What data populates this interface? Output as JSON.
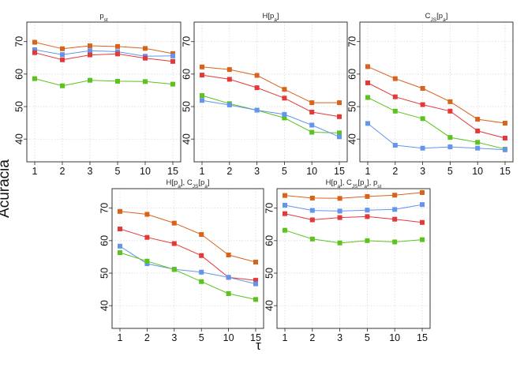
{
  "figure": {
    "ylabel": "Acurácia",
    "xlabel": "τ"
  },
  "chart_data": [
    {
      "type": "line",
      "title": "p_st",
      "x": [
        "1",
        "2",
        "3",
        "5",
        "10",
        "15"
      ],
      "ylim": [
        33,
        76
      ],
      "yticks": [
        40,
        50,
        60,
        70
      ],
      "series": [
        {
          "name": "orange",
          "color": "#d8641c",
          "values": [
            69.8,
            67.8,
            68.7,
            68.5,
            67.9,
            66.3
          ]
        },
        {
          "name": "blue",
          "color": "#6495ed",
          "values": [
            67.5,
            66.0,
            67.2,
            66.9,
            65.5,
            65.6
          ]
        },
        {
          "name": "red",
          "color": "#e23a3a",
          "values": [
            66.6,
            64.4,
            65.9,
            66.2,
            64.9,
            63.9
          ]
        },
        {
          "name": "green",
          "color": "#5cc21d",
          "values": [
            58.6,
            56.4,
            58.1,
            57.8,
            57.7,
            56.9
          ]
        }
      ]
    },
    {
      "type": "line",
      "title": "H[p_a]",
      "x": [
        "1",
        "2",
        "3",
        "5",
        "10",
        "15"
      ],
      "ylim": [
        33,
        76
      ],
      "yticks": [
        40,
        50,
        60,
        70
      ],
      "series": [
        {
          "name": "orange",
          "color": "#d8641c",
          "values": [
            62.2,
            61.4,
            59.6,
            55.3,
            51.2,
            51.2
          ]
        },
        {
          "name": "red",
          "color": "#e23a3a",
          "values": [
            59.7,
            58.4,
            55.8,
            52.6,
            48.3,
            46.9
          ]
        },
        {
          "name": "green",
          "color": "#5cc21d",
          "values": [
            53.4,
            50.9,
            48.9,
            46.5,
            42.1,
            41.9
          ]
        },
        {
          "name": "blue",
          "color": "#6495ed",
          "values": [
            51.9,
            50.5,
            48.9,
            47.6,
            44.3,
            40.7
          ]
        }
      ]
    },
    {
      "type": "line",
      "title": "C_JS[p_a]",
      "x": [
        "1",
        "2",
        "3",
        "5",
        "10",
        "15"
      ],
      "ylim": [
        33,
        76
      ],
      "yticks": [
        40,
        50,
        60,
        70
      ],
      "series": [
        {
          "name": "orange",
          "color": "#d8641c",
          "values": [
            62.3,
            58.6,
            55.6,
            51.5,
            46.1,
            44.9
          ]
        },
        {
          "name": "red",
          "color": "#e23a3a",
          "values": [
            57.3,
            53.0,
            50.6,
            48.6,
            42.5,
            40.3
          ]
        },
        {
          "name": "green",
          "color": "#5cc21d",
          "values": [
            52.8,
            48.6,
            46.3,
            40.5,
            39.0,
            36.9
          ]
        },
        {
          "name": "blue",
          "color": "#6495ed",
          "values": [
            44.8,
            38.1,
            37.2,
            37.6,
            37.2,
            36.7
          ]
        }
      ]
    },
    {
      "type": "line",
      "title": "H[p_a], C_JS[p_a]",
      "x": [
        "1",
        "2",
        "3",
        "5",
        "10",
        "15"
      ],
      "ylim": [
        33,
        76
      ],
      "yticks": [
        40,
        50,
        60,
        70
      ],
      "series": [
        {
          "name": "orange",
          "color": "#d8641c",
          "values": [
            69.0,
            68.1,
            65.4,
            61.9,
            55.6,
            53.4
          ]
        },
        {
          "name": "red",
          "color": "#e23a3a",
          "values": [
            63.6,
            61.0,
            59.1,
            55.4,
            48.7,
            47.8
          ]
        },
        {
          "name": "blue",
          "color": "#6495ed",
          "values": [
            58.3,
            52.9,
            51.2,
            50.3,
            48.7,
            46.7
          ]
        },
        {
          "name": "green",
          "color": "#5cc21d",
          "values": [
            56.3,
            53.7,
            51.1,
            47.4,
            43.7,
            41.9
          ]
        }
      ]
    },
    {
      "type": "line",
      "title": "H[p_a], C_JS[p_a], p_st",
      "x": [
        "1",
        "2",
        "3",
        "5",
        "10",
        "15"
      ],
      "ylim": [
        33,
        76
      ],
      "yticks": [
        40,
        50,
        60,
        70
      ],
      "series": [
        {
          "name": "orange",
          "color": "#d8641c",
          "values": [
            73.9,
            73.1,
            73.0,
            73.6,
            74.0,
            74.8
          ]
        },
        {
          "name": "blue",
          "color": "#6495ed",
          "values": [
            70.9,
            69.3,
            69.1,
            69.4,
            69.6,
            71.1
          ]
        },
        {
          "name": "red",
          "color": "#e23a3a",
          "values": [
            68.3,
            66.4,
            67.1,
            67.4,
            66.6,
            65.6
          ]
        },
        {
          "name": "green",
          "color": "#5cc21d",
          "values": [
            63.2,
            60.5,
            59.3,
            60.0,
            59.6,
            60.3
          ]
        }
      ]
    }
  ]
}
